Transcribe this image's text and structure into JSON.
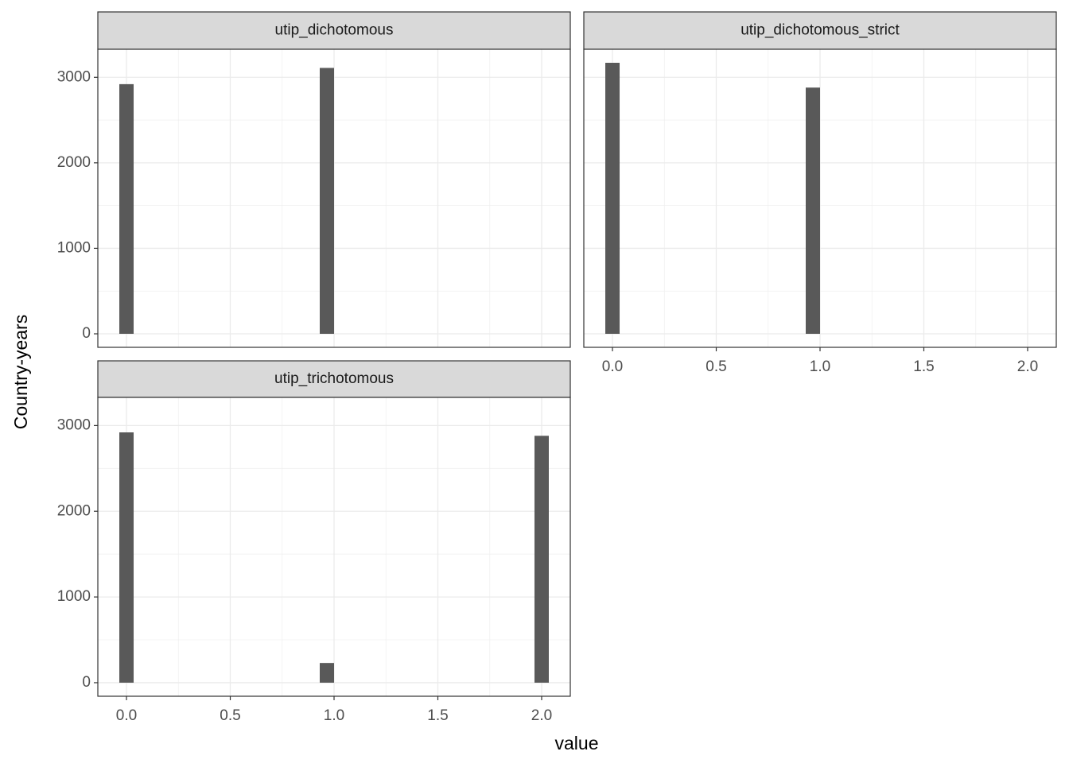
{
  "x_label": "value",
  "y_label": "Country-years",
  "chart_data": [
    {
      "type": "histogram",
      "title": "utip_dichotomous",
      "bins": [
        -0.0345,
        0.0345,
        0.1034,
        0.1724,
        0.2414,
        0.3103,
        0.3793,
        0.4483,
        0.5172,
        0.5862,
        0.6552,
        0.7241,
        0.7931,
        0.8621,
        0.931,
        1.0,
        1.069,
        1.1379,
        1.2069,
        1.2759,
        1.3448,
        1.4138,
        1.4828,
        1.5517,
        1.6207,
        1.6897,
        1.7586,
        1.8276,
        1.8966,
        1.9655,
        2.0345
      ],
      "values": [
        2920,
        0,
        0,
        0,
        0,
        0,
        0,
        0,
        0,
        0,
        0,
        0,
        0,
        0,
        3110,
        0,
        0,
        0,
        0,
        0,
        0,
        0,
        0,
        0,
        0,
        0,
        0,
        0,
        0,
        0
      ],
      "color": "#595959",
      "xlim": [
        -0.138,
        2.138
      ],
      "ylim": [
        -158,
        3328
      ],
      "xticks": [
        {
          "value": 0,
          "label": "0.0"
        },
        0.5,
        {
          "value": 1,
          "label": "1.0"
        },
        1.5,
        {
          "value": 2,
          "label": "2.0"
        }
      ],
      "yticks": [
        0,
        1000,
        2000,
        3000
      ],
      "grid": true
    },
    {
      "type": "histogram",
      "title": "utip_dichotomous_strict",
      "bins": [
        -0.0345,
        0.0345,
        0.1034,
        0.1724,
        0.2414,
        0.3103,
        0.3793,
        0.4483,
        0.5172,
        0.5862,
        0.6552,
        0.7241,
        0.7931,
        0.8621,
        0.931,
        1.0,
        1.069,
        1.1379,
        1.2069,
        1.2759,
        1.3448,
        1.4138,
        1.4828,
        1.5517,
        1.6207,
        1.6897,
        1.7586,
        1.8276,
        1.8966,
        1.9655,
        2.0345
      ],
      "values": [
        3170,
        0,
        0,
        0,
        0,
        0,
        0,
        0,
        0,
        0,
        0,
        0,
        0,
        0,
        2880,
        0,
        0,
        0,
        0,
        0,
        0,
        0,
        0,
        0,
        0,
        0,
        0,
        0,
        0,
        0
      ],
      "color": "#595959",
      "xlim": [
        -0.138,
        2.138
      ],
      "ylim": [
        -158,
        3328
      ],
      "xticks": [
        {
          "value": 0,
          "label": "0.0"
        },
        0.5,
        {
          "value": 1,
          "label": "1.0"
        },
        1.5,
        {
          "value": 2,
          "label": "2.0"
        }
      ],
      "yticks": [
        0,
        1000,
        2000,
        3000
      ],
      "grid": true
    },
    {
      "type": "histogram",
      "title": "utip_trichotomous",
      "bins": [
        -0.0345,
        0.0345,
        0.1034,
        0.1724,
        0.2414,
        0.3103,
        0.3793,
        0.4483,
        0.5172,
        0.5862,
        0.6552,
        0.7241,
        0.7931,
        0.8621,
        0.931,
        1.0,
        1.069,
        1.1379,
        1.2069,
        1.2759,
        1.3448,
        1.4138,
        1.4828,
        1.5517,
        1.6207,
        1.6897,
        1.7586,
        1.8276,
        1.8966,
        1.9655,
        2.0345
      ],
      "values": [
        2920,
        0,
        0,
        0,
        0,
        0,
        0,
        0,
        0,
        0,
        0,
        0,
        0,
        0,
        230,
        0,
        0,
        0,
        0,
        0,
        0,
        0,
        0,
        0,
        0,
        0,
        0,
        0,
        0,
        2880
      ],
      "color": "#595959",
      "xlim": [
        -0.138,
        2.138
      ],
      "ylim": [
        -158,
        3328
      ],
      "xticks": [
        {
          "value": 0,
          "label": "0.0"
        },
        0.5,
        {
          "value": 1,
          "label": "1.0"
        },
        1.5,
        {
          "value": 2,
          "label": "2.0"
        }
      ],
      "yticks": [
        0,
        1000,
        2000,
        3000
      ],
      "grid": true
    }
  ]
}
